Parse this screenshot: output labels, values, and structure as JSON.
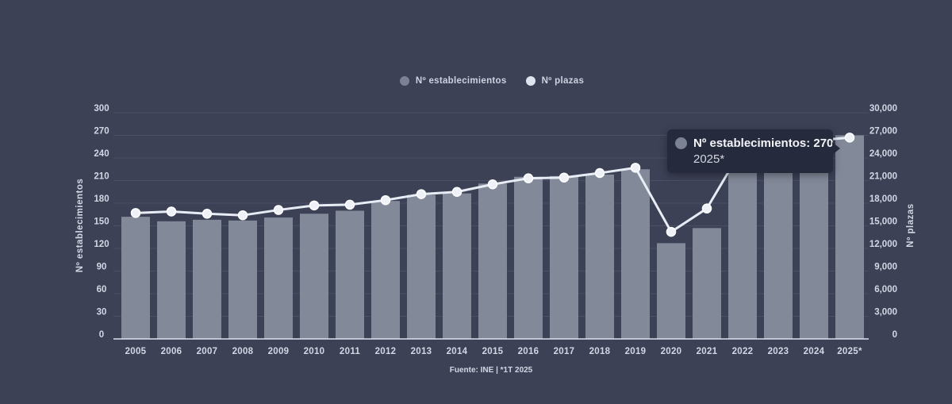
{
  "colors": {
    "background": "#3d4156",
    "grid": "#4b5066",
    "bar": "#828999",
    "line": "#e8ecf5",
    "dot_fill": "#eef1f8",
    "dot_stroke": "#ffffff",
    "axis_text": "#d3d7e4",
    "axis_line": "#dfe3ee",
    "establecimientos": "#7b8294",
    "plazas": "#dfe5f0"
  },
  "legend": {
    "items": [
      {
        "label": "Nº establecimientos",
        "color": "#7b8294"
      },
      {
        "label": "Nº plazas",
        "color": "#dfe5f0"
      }
    ]
  },
  "tooltip": {
    "marker_color": "#7b8294",
    "value_line": "Nº establecimientos: 270",
    "category_line": "2025*"
  },
  "chart_data": {
    "type": "combo",
    "categories": [
      "2005",
      "2006",
      "2007",
      "2008",
      "2009",
      "2010",
      "2011",
      "2012",
      "2013",
      "2014",
      "2015",
      "2016",
      "2017",
      "2018",
      "2019",
      "2020",
      "2021",
      "2022",
      "2023",
      "2024",
      "2025*"
    ],
    "series": [
      {
        "name": "Nº establecimientos",
        "type": "bar",
        "axis": "left",
        "values": [
          162,
          156,
          158,
          157,
          161,
          166,
          170,
          183,
          191,
          193,
          206,
          215,
          216,
          218,
          225,
          127,
          147,
          235,
          245,
          257,
          270
        ]
      },
      {
        "name": "Nº plazas",
        "type": "line",
        "axis": "right",
        "values": [
          16700,
          16900,
          16600,
          16400,
          17100,
          17700,
          17800,
          18400,
          19200,
          19500,
          20500,
          21300,
          21400,
          22000,
          22700,
          14200,
          17300,
          25300,
          25900,
          26300,
          26700
        ]
      }
    ],
    "left_axis": {
      "label": "Nº establecimientos",
      "min": 0,
      "max": 300,
      "step": 30
    },
    "right_axis": {
      "label": "Nº plazas",
      "min": 0,
      "max": 30000,
      "step": 3000
    },
    "grid": true,
    "legend_position": "top-center",
    "source": "Fuente: INE | *1T 2025"
  }
}
